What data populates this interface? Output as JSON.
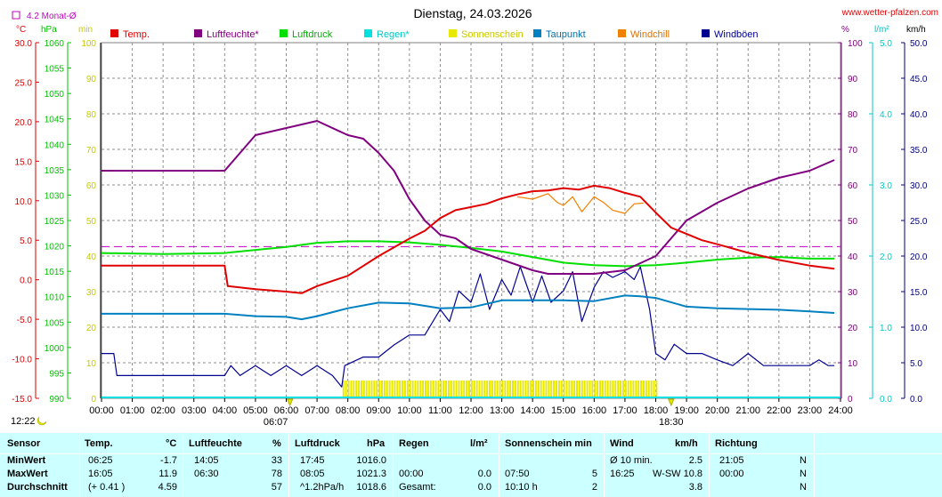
{
  "chart_data": {
    "type": "line",
    "title": "Dienstag, 24.03.2026",
    "source_link": "www.wetter-pfalzen.com",
    "month_avg_label": "4.2 Monat-Ø",
    "month_avg_temp": 4.2,
    "axes": {
      "temp": {
        "unit": "°C",
        "min": -15,
        "max": 30,
        "ticks": [
          "30.0",
          "25.0",
          "20.0",
          "15.0",
          "10.0",
          "5.0",
          "0.0",
          "-5.0",
          "-10.0",
          "-15.0"
        ]
      },
      "pressure": {
        "unit": "hPa",
        "min": 990,
        "max": 1060,
        "ticks": [
          "1060",
          "1055",
          "1050",
          "1045",
          "1040",
          "1035",
          "1030",
          "1025",
          "1020",
          "1015",
          "1010",
          "1005",
          "1000",
          "995",
          "990"
        ]
      },
      "minutes": {
        "unit": "min",
        "min": 0,
        "max": 100,
        "ticks": [
          "100",
          "90",
          "80",
          "70",
          "60",
          "50",
          "40",
          "30",
          "20",
          "10",
          "0"
        ]
      },
      "humidity": {
        "unit": "%",
        "min": 0,
        "max": 100,
        "ticks": [
          "100",
          "90",
          "80",
          "70",
          "60",
          "50",
          "40",
          "30",
          "20",
          "10",
          "0"
        ]
      },
      "rain": {
        "unit": "l/m²",
        "min": 0,
        "max": 5,
        "ticks": [
          "5.0",
          "4.0",
          "3.0",
          "2.0",
          "1.0",
          "0.0"
        ]
      },
      "wind": {
        "unit": "km/h",
        "min": 0,
        "max": 50,
        "ticks": [
          "50.0",
          "45.0",
          "40.0",
          "35.0",
          "30.0",
          "25.0",
          "20.0",
          "15.0",
          "10.0",
          "5.0",
          "0.0"
        ]
      }
    },
    "x_ticks": [
      "00:00",
      "01:00",
      "02:00",
      "03:00",
      "04:00",
      "05:00",
      "06:00",
      "07:00",
      "08:00",
      "09:00",
      "10:00",
      "11:00",
      "12:00",
      "13:00",
      "14:00",
      "15:00",
      "16:00",
      "17:00",
      "18:00",
      "19:00",
      "20:00",
      "21:00",
      "22:00",
      "23:00",
      "24:00"
    ],
    "x_range": [
      0,
      24
    ],
    "markers": {
      "sunrise": "06:07",
      "sunset": "18:30",
      "sunrise_h": 6.12,
      "sunset_h": 18.5,
      "moon": "12:22"
    },
    "legend": [
      {
        "name": "Temp.",
        "color": "#e00000"
      },
      {
        "name": "Luftfeuchte*",
        "color": "#800080"
      },
      {
        "name": "Luftdruck",
        "color": "#00e000"
      },
      {
        "name": "Regen*",
        "color": "#00e0e0"
      },
      {
        "name": "Sonnenschein",
        "color": "#e8e800"
      },
      {
        "name": "Taupunkt",
        "color": "#0080c0"
      },
      {
        "name": "Windchill",
        "color": "#f08000"
      },
      {
        "name": "Windböen",
        "color": "#000090"
      }
    ],
    "series": [
      {
        "name": "Temp.",
        "unit": "°C",
        "x": [
          0,
          4,
          4.1,
          5,
          6,
          6.5,
          7,
          8,
          9,
          10,
          10.5,
          11,
          11.5,
          12,
          12.5,
          13,
          13.5,
          14,
          14.5,
          15,
          15.5,
          16,
          16.5,
          17,
          17.5,
          18,
          18.5,
          19,
          19.5,
          20,
          21,
          22,
          23,
          23.8
        ],
        "y": [
          1.8,
          1.8,
          -0.8,
          -1.2,
          -1.5,
          -1.7,
          -0.8,
          0.5,
          3,
          5.2,
          6.2,
          7.8,
          8.8,
          9.2,
          9.6,
          10.3,
          10.8,
          11.2,
          11.3,
          11.6,
          11.4,
          11.9,
          11.6,
          11.0,
          10.5,
          8.5,
          6.6,
          5.8,
          5.0,
          4.5,
          3.4,
          2.5,
          1.8,
          1.4
        ]
      },
      {
        "name": "Windchill",
        "unit": "°C",
        "x": [
          13.5,
          14,
          14.5,
          14.8,
          15,
          15.3,
          15.6,
          16,
          16.3,
          16.6,
          17,
          17.3,
          17.6
        ],
        "y": [
          10.5,
          10.2,
          10.9,
          9.8,
          9.4,
          10.5,
          8.6,
          10.5,
          9.8,
          8.8,
          8.4,
          9.6,
          9.7
        ]
      },
      {
        "name": "Luftfeuchte*",
        "unit": "%",
        "x": [
          0,
          4,
          4.3,
          5,
          6,
          6.5,
          7,
          8,
          8.5,
          9,
          9.5,
          10,
          10.5,
          11,
          11.5,
          12,
          13,
          14,
          14.5,
          15,
          16,
          17,
          17.5,
          18,
          18.5,
          19,
          20,
          21,
          22,
          23,
          23.8
        ],
        "y": [
          64,
          64,
          67,
          74,
          76,
          77,
          78,
          74,
          73,
          69,
          64,
          56,
          50,
          46,
          45,
          42,
          39,
          36,
          35,
          35,
          35,
          36,
          38,
          40,
          45,
          50,
          55,
          59,
          62,
          64,
          67
        ]
      },
      {
        "name": "Luftdruck",
        "unit": "hPa",
        "x": [
          0,
          2,
          4,
          5,
          6,
          7,
          8,
          9,
          10,
          11,
          12,
          13,
          14,
          15,
          16,
          17,
          18,
          19,
          20,
          21,
          22,
          23,
          23.8
        ],
        "y": [
          1018.6,
          1018.4,
          1018.6,
          1019.2,
          1019.8,
          1020.6,
          1020.9,
          1020.9,
          1020.7,
          1020.2,
          1019.6,
          1018.9,
          1017.8,
          1016.7,
          1016.2,
          1016.0,
          1016.2,
          1016.7,
          1017.3,
          1017.7,
          1017.8,
          1017.5,
          1017.5
        ]
      },
      {
        "name": "Taupunkt",
        "unit": "°C",
        "x": [
          0,
          4,
          5,
          6,
          6.5,
          7,
          8,
          9,
          10,
          11,
          12,
          13,
          14,
          15,
          16,
          17,
          17.5,
          18,
          19,
          20,
          21,
          22,
          23,
          23.8
        ],
        "y": [
          -4.3,
          -4.3,
          -4.6,
          -4.7,
          -5.0,
          -4.6,
          -3.6,
          -2.9,
          -3.0,
          -3.6,
          -3.5,
          -2.6,
          -2.6,
          -2.6,
          -2.7,
          -2.0,
          -2.1,
          -2.3,
          -3.4,
          -3.6,
          -3.7,
          -3.8,
          -4.0,
          -4.2
        ]
      },
      {
        "name": "Windböen",
        "unit": "km/h",
        "x": [
          0,
          0.4,
          0.5,
          4,
          4.2,
          4.5,
          5,
          5.5,
          6,
          6.5,
          7,
          7.5,
          7.8,
          7.9,
          8.5,
          9,
          9.5,
          10,
          10.5,
          11,
          11.3,
          11.6,
          12,
          12.3,
          12.6,
          13,
          13.3,
          13.6,
          14,
          14.3,
          14.6,
          15,
          15.3,
          15.6,
          16,
          16.3,
          16.6,
          17,
          17.3,
          17.5,
          17.8,
          18,
          18.3,
          18.6,
          19,
          19.5,
          20,
          20.5,
          21,
          21.5,
          22,
          22.5,
          23,
          23.3,
          23.6,
          23.8
        ],
        "y": [
          6.3,
          6.3,
          3.2,
          3.2,
          4.6,
          3.2,
          4.6,
          3.2,
          4.6,
          3.2,
          4.6,
          3.2,
          1.6,
          4.6,
          5.8,
          5.8,
          7.5,
          8.9,
          8.9,
          12.5,
          10.8,
          15.1,
          13.5,
          17.5,
          12.5,
          16.7,
          14.5,
          18.5,
          13.5,
          17.2,
          13.5,
          15.1,
          17.8,
          10.8,
          15.6,
          17.8,
          17.0,
          17.8,
          16.7,
          18.5,
          12.5,
          6.3,
          5.4,
          7.6,
          6.3,
          6.3,
          5.4,
          4.6,
          6.3,
          4.6,
          4.6,
          4.6,
          4.6,
          5.4,
          4.6,
          4.6
        ]
      }
    ],
    "sunshine_bars": {
      "from_h": 7.83,
      "to_h": 18.0,
      "minutes_per_interval": 5
    }
  },
  "table": {
    "headers": {
      "sensor": "Sensor",
      "temp": "Temp.",
      "temp_unit": "°C",
      "hum": "Luftfeuchte",
      "hum_unit": "%",
      "press": "Luftdruck",
      "press_unit": "hPa",
      "rain": "Regen",
      "rain_unit": "l/m²",
      "sun": "Sonnenschein min",
      "wind": "Wind",
      "wind_unit": "km/h",
      "dir": "Richtung"
    },
    "rows": [
      {
        "label": "MinWert",
        "temp_time": "06:25",
        "temp_val": "-1.7",
        "hum_time": "14:05",
        "hum_val": "33",
        "press_time": "17:45",
        "press_val": "1016.0",
        "rain_time": "",
        "rain_val": "",
        "sun_time": "",
        "sun_val": "",
        "wind_time": "Ø 10 min.",
        "wind_val": "2.5",
        "dir_time": "21:05",
        "dir_val": "N"
      },
      {
        "label": "MaxWert",
        "temp_time": "16:05",
        "temp_val": "11.9",
        "hum_time": "06:30",
        "hum_val": "78",
        "press_time": "08:05",
        "press_val": "1021.3",
        "rain_time": "00:00",
        "rain_val": "0.0",
        "sun_time": "07:50",
        "sun_val": "5",
        "wind_time": "16:25",
        "wind_val": "W-SW 10.8",
        "dir_time": "00:00",
        "dir_val": "N"
      },
      {
        "label": "Durchschnitt",
        "temp_time": "(+ 0.41 )",
        "temp_val": "4.59",
        "hum_time": "",
        "hum_val": "57",
        "press_time": "^1.2hPa/h",
        "press_val": "1018.6",
        "rain_time": "Gesamt:",
        "rain_val": "0.0",
        "sun_time": "10:10 h",
        "sun_val": "2",
        "wind_time": "",
        "wind_val": "3.8",
        "dir_time": "",
        "dir_val": "N"
      }
    ]
  }
}
